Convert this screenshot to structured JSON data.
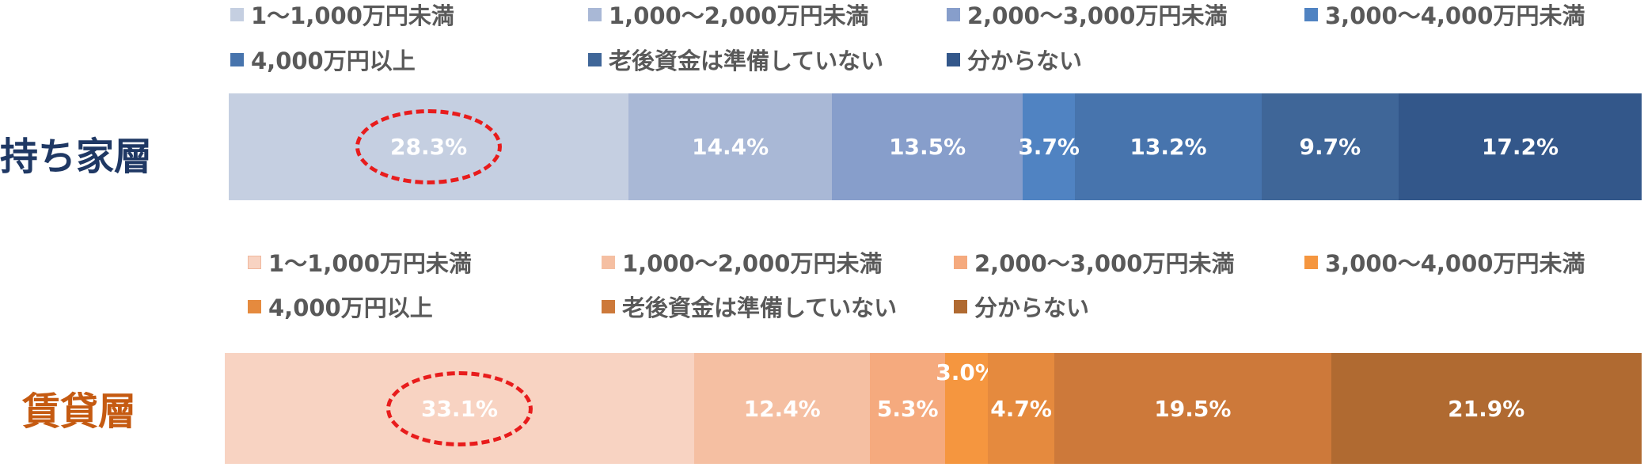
{
  "chart_data": [
    {
      "type": "bar",
      "orientation": "horizontal-stacked-100",
      "row_label": "持ち家層",
      "row_label_color": "#1f3864",
      "legend_position": "top",
      "categories": [
        "1～1,000万円未満",
        "1,000～2,000万円未満",
        "2,000～3,000万円未満",
        "3,000～4,000万円未満",
        "4,000万円以上",
        "老後資金は準備していない",
        "分からない"
      ],
      "values": [
        28.3,
        14.4,
        13.5,
        3.7,
        13.2,
        9.7,
        17.2
      ],
      "labels": [
        "28.3%",
        "14.4%",
        "13.5%",
        "3.7%",
        "13.2%",
        "9.7%",
        "17.2%"
      ],
      "colors": [
        "#c5cfe1",
        "#a9b8d6",
        "#879ecb",
        "#5083c2",
        "#4774ad",
        "#3f6698",
        "#33578a"
      ],
      "highlight_index": 0
    },
    {
      "type": "bar",
      "orientation": "horizontal-stacked-100",
      "row_label": "賃貸層",
      "row_label_color": "#c55a11",
      "legend_position": "top",
      "categories": [
        "1～1,000万円未満",
        "1,000～2,000万円未満",
        "2,000～3,000万円未満",
        "3,000～4,000万円未満",
        "4,000万円以上",
        "老後資金は準備していない",
        "分からない"
      ],
      "values": [
        33.1,
        12.4,
        5.3,
        3.0,
        4.7,
        19.5,
        21.9
      ],
      "labels": [
        "33.1%",
        "12.4%",
        "5.3%",
        "3.0%",
        "4.7%",
        "19.5%",
        "21.9%"
      ],
      "colors": [
        "#f8d3c2",
        "#f5bfa2",
        "#f5aa7e",
        "#f5963f",
        "#e58a3e",
        "#cd793a",
        "#b06a31"
      ],
      "highlight_index": 0,
      "label_above_index": 3
    }
  ]
}
